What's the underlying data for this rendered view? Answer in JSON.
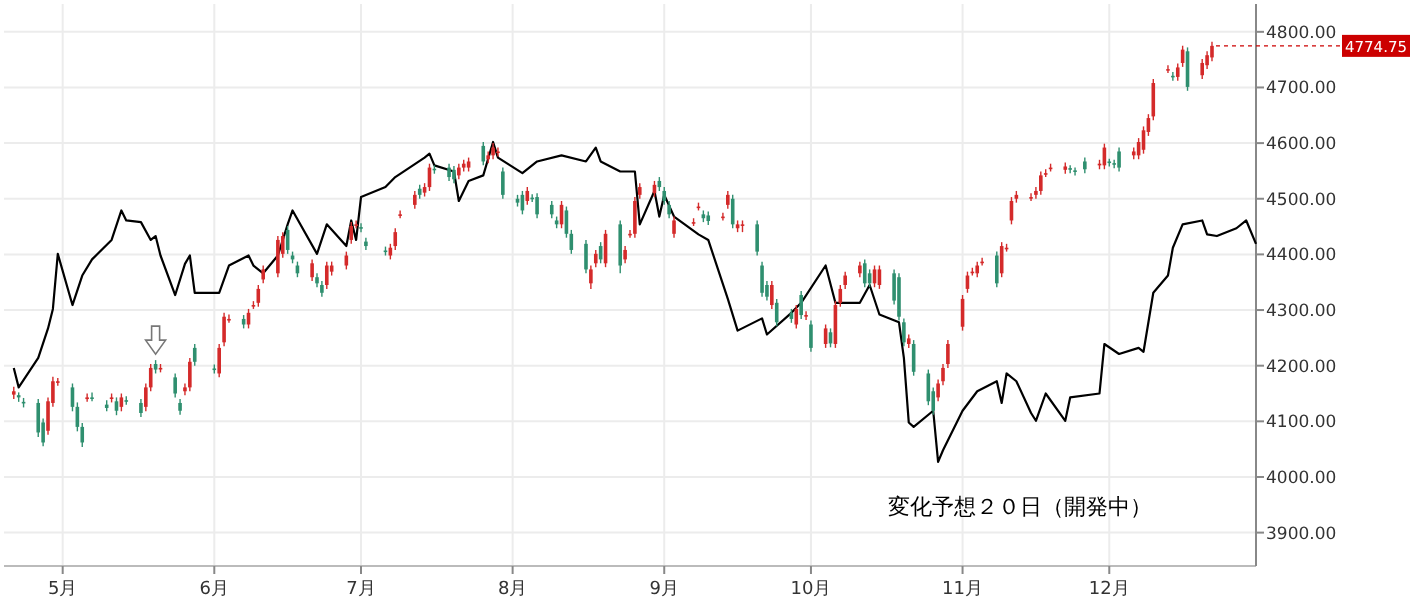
{
  "chart_data": {
    "type": "candlestick",
    "grid": true,
    "x": [
      "--04-21",
      "--04-22",
      "--04-23",
      "--04-26",
      "--04-27",
      "--04-28",
      "--04-29",
      "--04-30",
      "--05-03",
      "--05-04",
      "--05-05",
      "--05-06",
      "--05-07",
      "--05-10",
      "--05-11",
      "--05-12",
      "--05-13",
      "--05-14",
      "--05-17",
      "--05-18",
      "--05-19",
      "--05-20",
      "--05-21",
      "--05-24",
      "--05-25",
      "--05-26",
      "--05-27",
      "--05-28",
      "--06-01",
      "--06-02",
      "--06-03",
      "--06-04",
      "--06-07",
      "--06-08",
      "--06-09",
      "--06-10",
      "--06-11",
      "--06-14",
      "--06-15",
      "--06-16",
      "--06-17",
      "--06-18",
      "--06-21",
      "--06-22",
      "--06-23",
      "--06-24",
      "--06-25",
      "--06-28",
      "--06-29",
      "--06-30",
      "--07-01",
      "--07-02",
      "--07-06",
      "--07-07",
      "--07-08",
      "--07-09",
      "--07-12",
      "--07-13",
      "--07-14",
      "--07-15",
      "--07-16",
      "--07-19",
      "--07-20",
      "--07-21",
      "--07-22",
      "--07-23",
      "--07-26",
      "--07-27",
      "--07-28",
      "--07-29",
      "--07-30",
      "--08-02",
      "--08-03",
      "--08-04",
      "--08-05",
      "--08-06",
      "--08-09",
      "--08-10",
      "--08-11",
      "--08-12",
      "--08-13",
      "--08-16",
      "--08-17",
      "--08-18",
      "--08-19",
      "--08-20",
      "--08-23",
      "--08-24",
      "--08-25",
      "--08-26",
      "--08-27",
      "--08-30",
      "--08-31",
      "--09-01",
      "--09-02",
      "--09-03",
      "--09-07",
      "--09-08",
      "--09-09",
      "--09-10",
      "--09-13",
      "--09-14",
      "--09-15",
      "--09-16",
      "--09-17",
      "--09-20",
      "--09-21",
      "--09-22",
      "--09-23",
      "--09-24",
      "--09-27",
      "--09-28",
      "--09-29",
      "--09-30",
      "--10-01",
      "--10-04",
      "--10-05",
      "--10-06",
      "--10-07",
      "--10-08",
      "--10-11",
      "--10-12",
      "--10-13",
      "--10-14",
      "--10-15",
      "--10-18",
      "--10-19",
      "--10-20",
      "--10-21",
      "--10-22",
      "--10-25",
      "--10-26",
      "--10-27",
      "--10-28",
      "--10-29",
      "--11-01",
      "--11-02",
      "--11-03",
      "--11-04",
      "--11-05",
      "--11-08",
      "--11-09",
      "--11-10",
      "--11-11",
      "--11-12",
      "--11-15",
      "--11-16",
      "--11-17",
      "--11-18",
      "--11-19",
      "--11-22",
      "--11-23",
      "--11-24",
      "--11-26",
      "--11-29",
      "--11-30",
      "--12-01",
      "--12-02",
      "--12-03",
      "--12-06",
      "--12-07",
      "--12-08",
      "--12-09",
      "--12-10",
      "--12-13",
      "--12-14",
      "--12-15",
      "--12-16",
      "--12-17",
      "--12-20",
      "--12-21",
      "--12-22"
    ],
    "ohlc": [
      [
        4148,
        4162,
        4140,
        4154
      ],
      [
        4147,
        4152,
        4135,
        4143
      ],
      [
        4135,
        4142,
        4125,
        4133
      ],
      [
        4133,
        4140,
        4072,
        4080
      ],
      [
        4098,
        4105,
        4055,
        4062
      ],
      [
        4083,
        4143,
        4076,
        4136
      ],
      [
        4133,
        4180,
        4126,
        4172
      ],
      [
        4170,
        4178,
        4164,
        4172
      ],
      [
        4161,
        4168,
        4118,
        4126
      ],
      [
        4126,
        4134,
        4082,
        4090
      ],
      [
        4090,
        4097,
        4054,
        4062
      ],
      [
        4140,
        4150,
        4135,
        4143
      ],
      [
        4143,
        4152,
        4136,
        4141
      ],
      [
        4130,
        4138,
        4118,
        4124
      ],
      [
        4141,
        4150,
        4134,
        4143
      ],
      [
        4136,
        4143,
        4111,
        4119
      ],
      [
        4126,
        4150,
        4118,
        4143
      ],
      [
        4138,
        4145,
        4130,
        4136
      ],
      [
        4133,
        4140,
        4108,
        4115
      ],
      [
        4126,
        4168,
        4118,
        4161
      ],
      [
        4161,
        4203,
        4154,
        4196
      ],
      [
        4203,
        4210,
        4186,
        4193
      ],
      [
        4194,
        4203,
        4188,
        4196
      ],
      [
        4179,
        4186,
        4143,
        4150
      ],
      [
        4133,
        4140,
        4112,
        4119
      ],
      [
        4154,
        4168,
        4147,
        4161
      ],
      [
        4161,
        4214,
        4154,
        4207
      ],
      [
        4232,
        4239,
        4200,
        4207
      ],
      [
        4195,
        4202,
        4186,
        4193
      ],
      [
        4186,
        4239,
        4179,
        4232
      ],
      [
        4242,
        4295,
        4235,
        4288
      ],
      [
        4282,
        4292,
        4277,
        4284
      ],
      [
        4284,
        4291,
        4267,
        4274
      ],
      [
        4274,
        4302,
        4267,
        4295
      ],
      [
        4307,
        4316,
        4302,
        4309
      ],
      [
        4313,
        4345,
        4306,
        4338
      ],
      [
        4355,
        4380,
        4348,
        4373
      ],
      [
        4366,
        4433,
        4359,
        4426
      ],
      [
        4401,
        4440,
        4394,
        4433
      ],
      [
        4444,
        4451,
        4401,
        4408
      ],
      [
        4398,
        4405,
        4384,
        4391
      ],
      [
        4380,
        4387,
        4359,
        4366
      ],
      [
        4359,
        4391,
        4352,
        4384
      ],
      [
        4359,
        4366,
        4341,
        4348
      ],
      [
        4345,
        4352,
        4324,
        4331
      ],
      [
        4345,
        4387,
        4338,
        4380
      ],
      [
        4369,
        4387,
        4362,
        4380
      ],
      [
        4380,
        4405,
        4373,
        4398
      ],
      [
        4426,
        4458,
        4419,
        4451
      ],
      [
        4452,
        4461,
        4447,
        4454
      ],
      [
        4449,
        4456,
        4440,
        4447
      ],
      [
        4423,
        4430,
        4408,
        4415
      ],
      [
        4407,
        4414,
        4398,
        4405
      ],
      [
        4398,
        4419,
        4391,
        4412
      ],
      [
        4415,
        4447,
        4408,
        4440
      ],
      [
        4470,
        4479,
        4465,
        4472
      ],
      [
        4489,
        4514,
        4482,
        4507
      ],
      [
        4518,
        4525,
        4500,
        4507
      ],
      [
        4511,
        4528,
        4504,
        4521
      ],
      [
        4521,
        4563,
        4514,
        4556
      ],
      [
        4554,
        4560,
        4545,
        4552
      ],
      [
        4556,
        4563,
        4532,
        4539
      ],
      [
        4552,
        4559,
        4528,
        4535
      ],
      [
        4542,
        4563,
        4535,
        4556
      ],
      [
        4556,
        4570,
        4549,
        4563
      ],
      [
        4556,
        4574,
        4549,
        4567
      ],
      [
        4595,
        4602,
        4560,
        4567
      ],
      [
        4571,
        4585,
        4564,
        4578
      ],
      [
        4578,
        4600,
        4571,
        4592
      ],
      [
        4583,
        4592,
        4576,
        4585
      ],
      [
        4549,
        4556,
        4500,
        4507
      ],
      [
        4500,
        4507,
        4486,
        4493
      ],
      [
        4507,
        4514,
        4472,
        4479
      ],
      [
        4496,
        4521,
        4489,
        4514
      ],
      [
        4502,
        4508,
        4494,
        4500
      ],
      [
        4503,
        4510,
        4465,
        4472
      ],
      [
        4489,
        4496,
        4465,
        4472
      ],
      [
        4461,
        4468,
        4447,
        4454
      ],
      [
        4454,
        4496,
        4447,
        4489
      ],
      [
        4479,
        4486,
        4430,
        4437
      ],
      [
        4437,
        4444,
        4401,
        4408
      ],
      [
        4419,
        4426,
        4366,
        4373
      ],
      [
        4348,
        4380,
        4338,
        4373
      ],
      [
        4384,
        4408,
        4377,
        4401
      ],
      [
        4415,
        4422,
        4384,
        4391
      ],
      [
        4384,
        4444,
        4377,
        4437
      ],
      [
        4454,
        4461,
        4366,
        4380
      ],
      [
        4391,
        4415,
        4384,
        4408
      ],
      [
        4435,
        4444,
        4430,
        4437
      ],
      [
        4437,
        4503,
        4430,
        4496
      ],
      [
        4507,
        4528,
        4500,
        4521
      ],
      [
        4510,
        4532,
        4503,
        4525
      ],
      [
        4532,
        4539,
        4514,
        4521
      ],
      [
        4514,
        4521,
        4489,
        4496
      ],
      [
        4489,
        4496,
        4465,
        4472
      ],
      [
        4437,
        4468,
        4430,
        4461
      ],
      [
        4456,
        4465,
        4451,
        4458
      ],
      [
        4484,
        4493,
        4479,
        4486
      ],
      [
        4472,
        4479,
        4458,
        4465
      ],
      [
        4470,
        4477,
        4453,
        4460
      ],
      [
        4466,
        4475,
        4461,
        4468
      ],
      [
        4489,
        4514,
        4482,
        4507
      ],
      [
        4500,
        4507,
        4447,
        4454
      ],
      [
        4447,
        4461,
        4440,
        4454
      ],
      [
        4452,
        4461,
        4440,
        4454
      ],
      [
        4454,
        4461,
        4398,
        4405
      ],
      [
        4380,
        4387,
        4324,
        4331
      ],
      [
        4345,
        4352,
        4317,
        4324
      ],
      [
        4309,
        4352,
        4302,
        4345
      ],
      [
        4313,
        4320,
        4271,
        4278
      ],
      [
        4295,
        4302,
        4277,
        4284
      ],
      [
        4274,
        4309,
        4267,
        4302
      ],
      [
        4327,
        4334,
        4284,
        4291
      ],
      [
        4289,
        4298,
        4282,
        4291
      ],
      [
        4274,
        4281,
        4225,
        4232
      ],
      [
        4239,
        4274,
        4232,
        4267
      ],
      [
        4260,
        4267,
        4233,
        4240
      ],
      [
        4239,
        4316,
        4232,
        4309
      ],
      [
        4313,
        4345,
        4306,
        4338
      ],
      [
        4345,
        4369,
        4338,
        4362
      ],
      [
        4366,
        4387,
        4359,
        4380
      ],
      [
        4384,
        4391,
        4341,
        4348
      ],
      [
        4366,
        4373,
        4341,
        4348
      ],
      [
        4348,
        4380,
        4341,
        4373
      ],
      [
        4345,
        4380,
        4338,
        4373
      ],
      [
        4366,
        4373,
        4310,
        4317
      ],
      [
        4359,
        4366,
        4281,
        4288
      ],
      [
        4278,
        4285,
        4235,
        4242
      ],
      [
        4239,
        4256,
        4232,
        4249
      ],
      [
        4239,
        4246,
        4182,
        4189
      ],
      [
        4186,
        4193,
        4129,
        4136
      ],
      [
        4154,
        4161,
        4112,
        4119
      ],
      [
        4143,
        4175,
        4136,
        4168
      ],
      [
        4172,
        4203,
        4165,
        4196
      ],
      [
        4203,
        4246,
        4196,
        4239
      ],
      [
        4270,
        4327,
        4263,
        4320
      ],
      [
        4338,
        4369,
        4331,
        4362
      ],
      [
        4367,
        4376,
        4362,
        4369
      ],
      [
        4366,
        4387,
        4359,
        4380
      ],
      [
        4385,
        4394,
        4380,
        4387
      ],
      [
        4398,
        4405,
        4341,
        4348
      ],
      [
        4366,
        4422,
        4359,
        4415
      ],
      [
        4410,
        4419,
        4405,
        4412
      ],
      [
        4461,
        4503,
        4454,
        4496
      ],
      [
        4500,
        4514,
        4493,
        4507
      ],
      [
        4501,
        4510,
        4496,
        4503
      ],
      [
        4507,
        4521,
        4500,
        4514
      ],
      [
        4514,
        4549,
        4507,
        4542
      ],
      [
        4544,
        4553,
        4539,
        4546
      ],
      [
        4554,
        4563,
        4549,
        4556
      ],
      [
        4552,
        4565,
        4545,
        4558
      ],
      [
        4555,
        4560,
        4546,
        4553
      ],
      [
        4551,
        4556,
        4542,
        4549
      ],
      [
        4567,
        4574,
        4546,
        4553
      ],
      [
        4560,
        4570,
        4553,
        4563
      ],
      [
        4560,
        4599,
        4553,
        4592
      ],
      [
        4567,
        4572,
        4558,
        4565
      ],
      [
        4564,
        4570,
        4555,
        4562
      ],
      [
        4585,
        4592,
        4549,
        4556
      ],
      [
        4578,
        4592,
        4571,
        4585
      ],
      [
        4578,
        4609,
        4571,
        4602
      ],
      [
        4588,
        4630,
        4581,
        4623
      ],
      [
        4620,
        4652,
        4613,
        4645
      ],
      [
        4648,
        4715,
        4641,
        4708
      ],
      [
        4731,
        4740,
        4726,
        4733
      ],
      [
        4721,
        4728,
        4712,
        4719
      ],
      [
        4719,
        4743,
        4712,
        4736
      ],
      [
        4744,
        4775,
        4737,
        4768
      ],
      [
        4765,
        4772,
        4694,
        4701
      ],
      [
        4722,
        4751,
        4715,
        4744
      ],
      [
        4740,
        4765,
        4733,
        4758
      ],
      [
        4754,
        4782,
        4747,
        4774.75
      ]
    ],
    "colors": [
      "#d42a2a",
      "#2f8f6f",
      "#2f8f6f",
      "#2f8f6f",
      "#2f8f6f",
      "#d42a2a",
      "#d42a2a",
      "#d42a2a",
      "#2f8f6f",
      "#2f8f6f",
      "#2f8f6f",
      "#d42a2a",
      "#2f8f6f",
      "#2f8f6f",
      "#d42a2a",
      "#2f8f6f",
      "#d42a2a",
      "#2f8f6f",
      "#2f8f6f",
      "#d42a2a",
      "#d42a2a",
      "#2f8f6f",
      "#d42a2a",
      "#2f8f6f",
      "#2f8f6f",
      "#d42a2a",
      "#d42a2a",
      "#2f8f6f",
      "#2f8f6f",
      "#d42a2a",
      "#d42a2a",
      "#d42a2a",
      "#2f8f6f",
      "#d42a2a",
      "#d42a2a",
      "#d42a2a",
      "#d42a2a",
      "#d42a2a",
      "#d42a2a",
      "#2f8f6f",
      "#2f8f6f",
      "#2f8f6f",
      "#d42a2a",
      "#2f8f6f",
      "#2f8f6f",
      "#d42a2a",
      "#d42a2a",
      "#d42a2a",
      "#d42a2a",
      "#d42a2a",
      "#2f8f6f",
      "#2f8f6f",
      "#2f8f6f",
      "#d42a2a",
      "#d42a2a",
      "#d42a2a",
      "#d42a2a",
      "#2f8f6f",
      "#d42a2a",
      "#d42a2a",
      "#2f8f6f",
      "#2f8f6f",
      "#2f8f6f",
      "#d42a2a",
      "#d42a2a",
      "#d42a2a",
      "#2f8f6f",
      "#d42a2a",
      "#d42a2a",
      "#d42a2a",
      "#2f8f6f",
      "#2f8f6f",
      "#2f8f6f",
      "#d42a2a",
      "#2f8f6f",
      "#2f8f6f",
      "#2f8f6f",
      "#2f8f6f",
      "#d42a2a",
      "#2f8f6f",
      "#2f8f6f",
      "#2f8f6f",
      "#d42a2a",
      "#d42a2a",
      "#2f8f6f",
      "#d42a2a",
      "#2f8f6f",
      "#d42a2a",
      "#d42a2a",
      "#d42a2a",
      "#d42a2a",
      "#d42a2a",
      "#2f8f6f",
      "#2f8f6f",
      "#2f8f6f",
      "#d42a2a",
      "#d42a2a",
      "#d42a2a",
      "#2f8f6f",
      "#2f8f6f",
      "#d42a2a",
      "#d42a2a",
      "#2f8f6f",
      "#d42a2a",
      "#d42a2a",
      "#2f8f6f",
      "#2f8f6f",
      "#2f8f6f",
      "#d42a2a",
      "#2f8f6f",
      "#2f8f6f",
      "#d42a2a",
      "#2f8f6f",
      "#d42a2a",
      "#2f8f6f",
      "#d42a2a",
      "#2f8f6f",
      "#d42a2a",
      "#d42a2a",
      "#d42a2a",
      "#d42a2a",
      "#2f8f6f",
      "#2f8f6f",
      "#d42a2a",
      "#d42a2a",
      "#2f8f6f",
      "#2f8f6f",
      "#2f8f6f",
      "#d42a2a",
      "#2f8f6f",
      "#2f8f6f",
      "#2f8f6f",
      "#d42a2a",
      "#d42a2a",
      "#d42a2a",
      "#d42a2a",
      "#d42a2a",
      "#d42a2a",
      "#d42a2a",
      "#d42a2a",
      "#2f8f6f",
      "#d42a2a",
      "#d42a2a",
      "#d42a2a",
      "#d42a2a",
      "#d42a2a",
      "#d42a2a",
      "#d42a2a",
      "#d42a2a",
      "#d42a2a",
      "#d42a2a",
      "#2f8f6f",
      "#2f8f6f",
      "#2f8f6f",
      "#d42a2a",
      "#d42a2a",
      "#2f8f6f",
      "#2f8f6f",
      "#2f8f6f",
      "#d42a2a",
      "#d42a2a",
      "#d42a2a",
      "#d42a2a",
      "#d42a2a",
      "#d42a2a",
      "#2f8f6f",
      "#d42a2a",
      "#d42a2a",
      "#2f8f6f",
      "#d42a2a",
      "#d42a2a",
      "#d42a2a"
    ],
    "series": [
      {
        "type": "line",
        "name": "変化予想２０日（開発中）",
        "color": "#000000",
        "marker": "none",
        "x": [
          "--04-21",
          "--04-22",
          "--04-26",
          "--04-28",
          "--04-29",
          "--04-30",
          "--05-03",
          "--05-05",
          "--05-07",
          "--05-11",
          "--05-13",
          "--05-14",
          "--05-17",
          "--05-19",
          "--05-20",
          "--05-21",
          "--05-24",
          "--05-26",
          "--05-27",
          "--05-28",
          "--06-02",
          "--06-04",
          "--06-08",
          "--06-09",
          "--06-11",
          "--06-14",
          "--06-16",
          "--06-17",
          "--06-22",
          "--06-24",
          "--06-28",
          "--06-29",
          "--06-30",
          "--07-01",
          "--07-06",
          "--07-08",
          "--07-14",
          "--07-15",
          "--07-16",
          "--07-20",
          "--07-21",
          "--07-23",
          "--07-26",
          "--07-28",
          "--07-29",
          "--08-03",
          "--08-06",
          "--08-11",
          "--08-16",
          "--08-18",
          "--08-19",
          "--08-23",
          "--08-26",
          "--08-27",
          "--08-30",
          "--08-31",
          "--09-01",
          "--09-03",
          "--09-08",
          "--09-10",
          "--09-14",
          "--09-16",
          "--09-21",
          "--09-22",
          "--09-27",
          "--09-29",
          "--10-04",
          "--10-06",
          "--10-11",
          "--10-13",
          "--10-15",
          "--10-19",
          "--10-20",
          "--10-21",
          "--10-22",
          "--10-26",
          "--10-27",
          "--10-28",
          "--11-01",
          "--11-04",
          "--11-08",
          "--11-09",
          "--11-10",
          "--11-12",
          "--11-15",
          "--11-16",
          "--11-18",
          "--11-22",
          "--11-23",
          "--11-29",
          "--11-30",
          "--12-03",
          "--12-07",
          "--12-08",
          "--12-10",
          "--12-13",
          "--12-14",
          "--12-16",
          "--12-20",
          "--12-21",
          "--12-23",
          "--12-27",
          "--12-29",
          "--12-31"
        ],
        "values": [
          4196,
          4161,
          4214,
          4267,
          4302,
          4401,
          4309,
          4362,
          4391,
          4426,
          4479,
          4461,
          4458,
          4426,
          4433,
          4398,
          4327,
          4383,
          4398,
          4331,
          4331,
          4380,
          4398,
          4380,
          4366,
          4398,
          4454,
          4479,
          4401,
          4454,
          4415,
          4461,
          4426,
          4503,
          4521,
          4539,
          4574,
          4581,
          4560,
          4549,
          4496,
          4532,
          4542,
          4602,
          4574,
          4546,
          4567,
          4578,
          4567,
          4592,
          4567,
          4549,
          4549,
          4454,
          4514,
          4468,
          4507,
          4468,
          4436,
          4426,
          4320,
          4263,
          4285,
          4256,
          4295,
          4313,
          4380,
          4313,
          4313,
          4345,
          4292,
          4278,
          4214,
          4098,
          4090,
          4119,
          4027,
          4048,
          4119,
          4154,
          4172,
          4133,
          4186,
          4172,
          4115,
          4101,
          4150,
          4101,
          4143,
          4150,
          4239,
          4221,
          4232,
          4225,
          4331,
          4362,
          4412,
          4454,
          4461,
          4436,
          4433,
          4447,
          4461,
          4419
        ]
      }
    ],
    "xlim": [
      "--04-19",
      "--12-31"
    ],
    "xticks": [
      {
        "value": "--05-01",
        "label": "5月"
      },
      {
        "value": "--06-01",
        "label": "6月"
      },
      {
        "value": "--07-01",
        "label": "7月"
      },
      {
        "value": "--08-01",
        "label": "8月"
      },
      {
        "value": "--09-01",
        "label": "9月"
      },
      {
        "value": "--10-01",
        "label": "10月"
      },
      {
        "value": "--11-01",
        "label": "11月"
      },
      {
        "value": "--12-01",
        "label": "12月"
      }
    ],
    "ylim": [
      3840,
      4850
    ],
    "yticks": [
      {
        "value": 3900,
        "label": "3900.00"
      },
      {
        "value": 4000,
        "label": "4000.00"
      },
      {
        "value": 4100,
        "label": "4100.00"
      },
      {
        "value": 4200,
        "label": "4200.00"
      },
      {
        "value": 4300,
        "label": "4300.00"
      },
      {
        "value": 4400,
        "label": "4400.00"
      },
      {
        "value": 4500,
        "label": "4500.00"
      },
      {
        "value": 4600,
        "label": "4600.00"
      },
      {
        "value": 4700,
        "label": "4700.00"
      },
      {
        "value": 4800,
        "label": "4800.00"
      }
    ],
    "annotations": [
      {
        "text": "4774.75",
        "x": "--12-22",
        "y": 4774.75
      }
    ]
  }
}
